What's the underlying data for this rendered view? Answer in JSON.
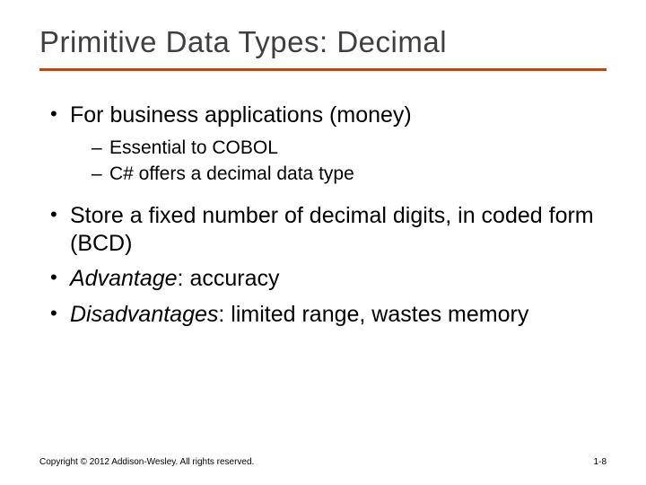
{
  "title": "Primitive Data Types: Decimal",
  "colors": {
    "title_text": "#3f3f3f",
    "rule": "#b24a1a",
    "body_text": "#000000",
    "background": "#ffffff"
  },
  "typography": {
    "title_fontsize": 33,
    "l1_fontsize": 25,
    "l2_fontsize": 21,
    "footer_fontsize": 10
  },
  "bullets": [
    {
      "text": "For business applications (money)",
      "sub": [
        "Essential to COBOL",
        "C# offers a decimal data type"
      ]
    },
    {
      "text": "Store a fixed number of decimal digits, in coded form (BCD)"
    },
    {
      "label": "Advantage",
      "rest": ": accuracy"
    },
    {
      "label": "Disadvantages",
      "rest": ": limited range, wastes memory"
    }
  ],
  "footer": {
    "copyright": "Copyright © 2012 Addison-Wesley. All rights reserved.",
    "page": "1-8"
  }
}
